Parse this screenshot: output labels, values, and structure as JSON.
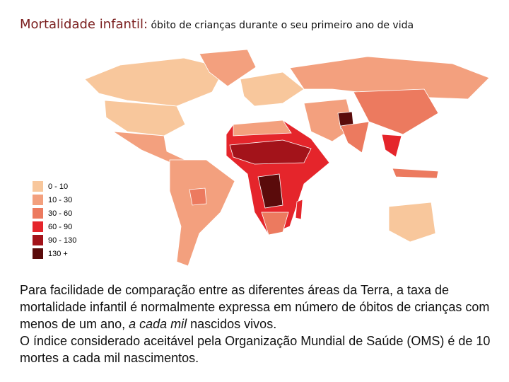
{
  "header": {
    "title": "Mortalidade infantil:",
    "subtitle": "óbito de crianças durante o seu primeiro ano de vida"
  },
  "legend": {
    "items": [
      {
        "label": "0 - 10",
        "color": "#f8c79c"
      },
      {
        "label": "10 - 30",
        "color": "#f3a07e"
      },
      {
        "label": "30 - 60",
        "color": "#ec7a5f"
      },
      {
        "label": "60 - 90",
        "color": "#e5252b"
      },
      {
        "label": "90 - 130",
        "color": "#a3131a"
      },
      {
        "label": "130 +",
        "color": "#5a0b0b"
      }
    ]
  },
  "body": {
    "paragraphs": [
      [
        "Para facilidade de comparação entre as diferentes áreas da Terra, a taxa de mortalidade infantil é normalmente expressa em número de óbitos de crianças com menos de um ano, ",
        "a cada mil",
        " nascidos vivos."
      ],
      [
        "O índice considerado aceitável pela Organização Mundial de Saúde (OMS) é de 10 mortes a cada mil nascimentos."
      ]
    ]
  }
}
